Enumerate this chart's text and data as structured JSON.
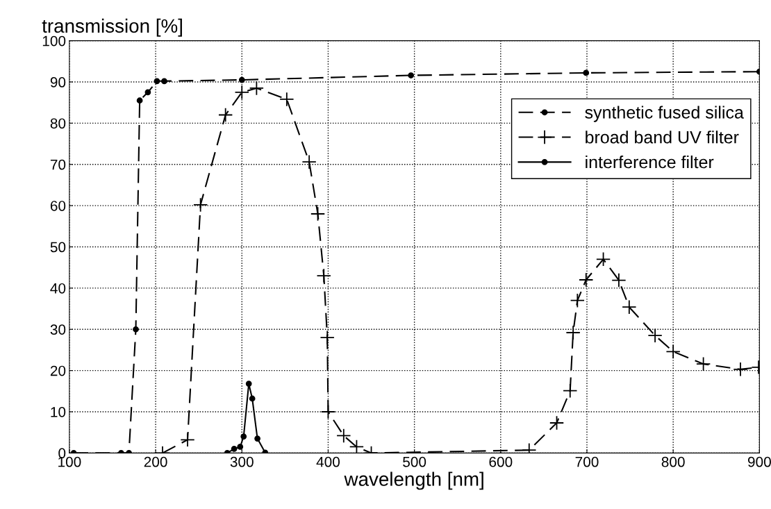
{
  "chart_data": {
    "type": "line",
    "xlabel": "wavelength [nm]",
    "ylabel": "transmission [%]",
    "xlim": [
      100,
      900
    ],
    "ylim": [
      0,
      100
    ],
    "xticks": [
      100,
      200,
      300,
      400,
      500,
      600,
      700,
      800,
      900
    ],
    "yticks": [
      0,
      10,
      20,
      30,
      40,
      50,
      60,
      70,
      80,
      90,
      100
    ],
    "grid": true,
    "legend": "top right",
    "series": [
      {
        "name": "synthetic fused silica",
        "color": "#000000",
        "line_style": "dashed",
        "marker": "circle",
        "x": [
          105,
          160,
          169,
          177,
          181.5,
          191,
          201.5,
          210,
          300,
          496,
          699,
          900
        ],
        "values": [
          0,
          0,
          0,
          30,
          85.5,
          87.5,
          90.2,
          90.2,
          90.5,
          91.6,
          92.2,
          92.5
        ]
      },
      {
        "name": "broad band UV filter",
        "color": "#000000",
        "line_style": "dashed",
        "marker": "cross",
        "x": [
          208,
          237,
          252,
          281,
          300,
          317,
          352,
          378,
          388,
          395,
          399,
          400,
          418,
          433,
          450,
          633,
          665,
          680.5,
          684,
          689,
          699,
          719,
          737,
          749,
          779,
          800,
          835,
          878,
          899
        ],
        "values": [
          0,
          3.2,
          60.2,
          82,
          87.5,
          88.5,
          85.8,
          70.6,
          58,
          43,
          28,
          10,
          4.2,
          1.5,
          0,
          0.7,
          7.3,
          15.1,
          29.2,
          37,
          42,
          47,
          41.9,
          35.4,
          28.5,
          24.6,
          21.6,
          20.3,
          20.8
        ]
      },
      {
        "name": "interference filter",
        "color": "#000000",
        "line_style": "solid",
        "marker": "circle",
        "x": [
          283,
          291,
          298,
          302,
          308,
          312,
          318,
          327
        ],
        "values": [
          0,
          1.0,
          1.5,
          4.0,
          16.8,
          13.2,
          3.5,
          0.1
        ]
      }
    ]
  }
}
